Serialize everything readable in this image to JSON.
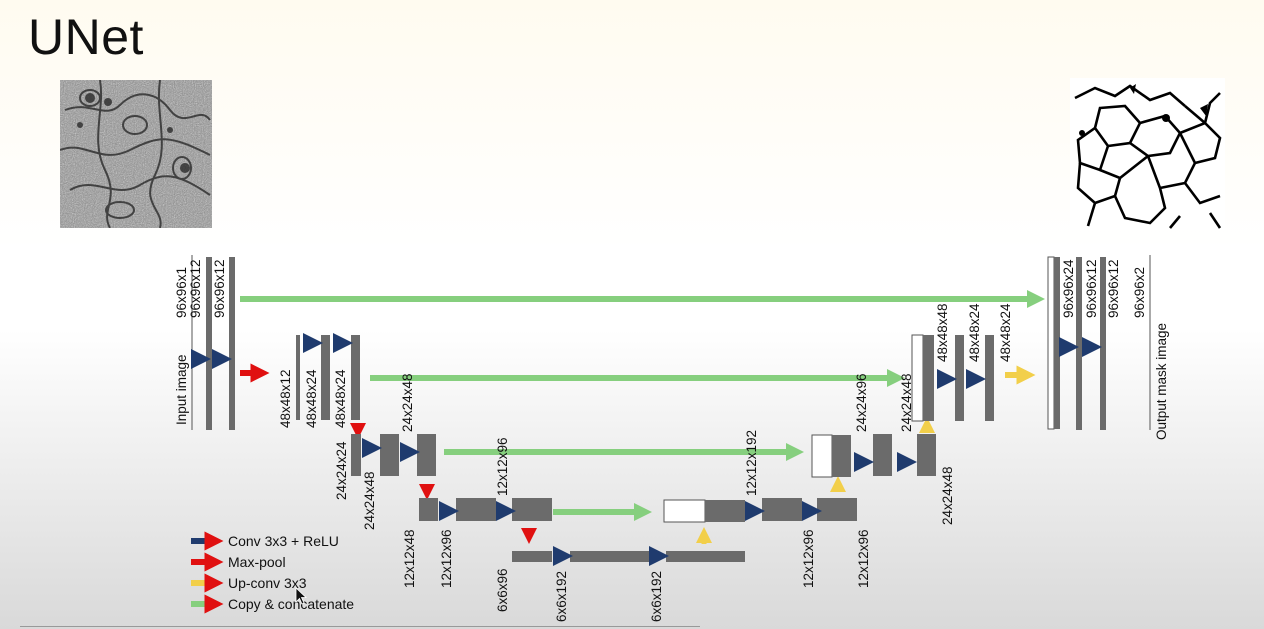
{
  "title": "UNet",
  "input_image": "electron-microscopy-cell-image",
  "output_image": "segmentation-mask-image",
  "labels": {
    "input_image": "Input image",
    "output_mask": "Output mask image",
    "l1_in": "96x96x1",
    "l1_a": "96x96x12",
    "l1_b": "96x96x12",
    "l2_a": "48x48x12",
    "l2_b": "48x48x24",
    "l2_c": "48x48x24",
    "l3_a": "24x24x24",
    "l3_b": "24x24x48",
    "l3_c": "24x24x48",
    "l4_a": "12x12x48",
    "l4_b": "12x12x96",
    "l4_c": "12x12x96",
    "l5_a": "6x6x96",
    "l5_b": "6x6x192",
    "l5_c": "6x6x192",
    "u4_a": "12x12x192",
    "u4_b": "12x12x96",
    "u4_c": "12x12x96",
    "u3_a": "24x24x96",
    "u3_b": "24x24x48",
    "u3_c": "24x24x48",
    "u2_a": "48x48x48",
    "u2_b": "48x48x24",
    "u2_c": "48x48x24",
    "u1_a": "96x96x24",
    "u1_b": "96x96x12",
    "u1_c": "96x96x12",
    "u1_out": "96x96x2"
  },
  "legend": [
    {
      "label": "Conv 3x3 + ReLU",
      "color": "#1f3b6e"
    },
    {
      "label": "Max-pool",
      "color": "#e01010"
    },
    {
      "label": "Up-conv 3x3",
      "color": "#f2cf4a"
    },
    {
      "label": "Copy & concatenate",
      "color": "#86cf7e"
    }
  ],
  "colors": {
    "block": "#6b6b6b",
    "conv": "#1f3b6e",
    "pool": "#e01010",
    "upconv": "#f2cf4a",
    "copy": "#86cf7e"
  }
}
